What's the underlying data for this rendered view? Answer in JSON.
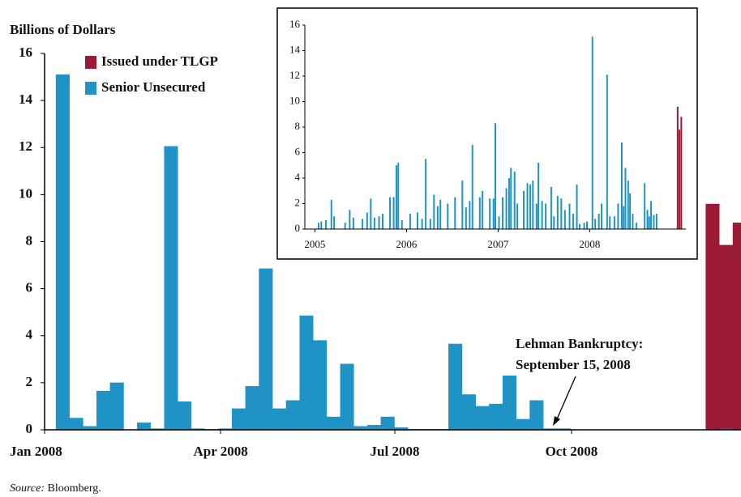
{
  "chart_data": [
    {
      "type": "bar",
      "ylabel": "Billions of Dollars",
      "x": [
        0,
        1,
        2,
        3,
        4,
        5,
        6,
        7,
        8,
        9,
        10,
        11,
        12,
        13,
        14,
        15,
        16,
        17,
        18,
        19,
        20,
        21,
        22,
        23,
        24,
        25,
        26,
        27,
        28,
        29,
        30,
        31,
        32,
        33,
        34,
        35,
        36,
        37,
        38,
        39,
        40,
        41,
        42,
        43,
        44,
        45,
        46,
        47,
        48,
        49,
        50
      ],
      "series": [
        {
          "name": "Senior Unsecured",
          "color": "#1f93c6",
          "values": [
            15.1,
            0.5,
            0.15,
            1.65,
            2.0,
            0,
            0.3,
            0.05,
            12.05,
            1.2,
            0.05,
            0.02,
            0.05,
            0.9,
            1.85,
            6.85,
            0.9,
            1.25,
            4.85,
            3.8,
            0.55,
            2.8,
            0.15,
            0.2,
            0.55,
            0.1,
            0.02,
            0.02,
            0.02,
            3.65,
            1.5,
            1.0,
            1.1,
            2.3,
            0.45,
            1.25,
            0.05,
            0.05,
            0,
            0,
            0,
            0,
            0,
            0,
            0,
            0,
            0,
            0,
            0,
            0.05,
            0
          ]
        },
        {
          "name": "Issued under TLGP",
          "color": "#9b1b34",
          "values": [
            null,
            null,
            null,
            null,
            null,
            null,
            null,
            null,
            null,
            null,
            null,
            null,
            null,
            null,
            null,
            null,
            null,
            null,
            null,
            null,
            null,
            null,
            null,
            null,
            null,
            null,
            null,
            null,
            null,
            null,
            null,
            null,
            null,
            null,
            null,
            null,
            null,
            null,
            null,
            null,
            null,
            null,
            null,
            null,
            null,
            null,
            null,
            null,
            9.6,
            7.8,
            8.8
          ]
        }
      ],
      "legend_order": [
        1,
        0
      ],
      "xlim": [
        -0.84,
        50.6
      ],
      "xticks": [
        {
          "value": -0.84,
          "label": "Jan 2008"
        },
        {
          "value": 12.16,
          "label": "Apr 2008"
        },
        {
          "value": 25.03,
          "label": "Jul 2008"
        },
        {
          "value": 38.08,
          "label": "Oct 2008"
        }
      ],
      "ylim": [
        0,
        16
      ],
      "yticks": [
        0,
        2,
        4,
        6,
        8,
        10,
        12,
        14,
        16
      ],
      "annotation": [
        "Lehman Bankruptcy:",
        "September 15, 2008"
      ],
      "source_label": "Source:",
      "source": "Bloomberg."
    },
    {
      "type": "bar",
      "series": [
        {
          "name": "Senior Unsecured",
          "color": "#1f93c6",
          "x": [
            2005.04,
            2005.07,
            2005.12,
            2005.18,
            2005.21,
            2005.33,
            2005.38,
            2005.42,
            2005.52,
            2005.57,
            2005.61,
            2005.65,
            2005.7,
            2005.74,
            2005.82,
            2005.86,
            2005.89,
            2005.91,
            2005.95,
            2006.04,
            2006.12,
            2006.17,
            2006.21,
            2006.26,
            2006.3,
            2006.34,
            2006.37,
            2006.45,
            2006.53,
            2006.61,
            2006.65,
            2006.69,
            2006.72,
            2006.8,
            2006.83,
            2006.91,
            2006.95,
            2006.97,
            2007.01,
            2007.05,
            2007.09,
            2007.12,
            2007.14,
            2007.18,
            2007.21,
            2007.28,
            2007.32,
            2007.35,
            2007.38,
            2007.42,
            2007.44,
            2007.48,
            2007.52,
            2007.58,
            2007.61,
            2007.65,
            2007.69,
            2007.73,
            2007.78,
            2007.82,
            2007.86,
            2007.89,
            2007.94,
            2007.97,
            2008.03,
            2008.06,
            2008.1,
            2008.13,
            2008.19,
            2008.22,
            2008.27,
            2008.31,
            2008.35,
            2008.37,
            2008.39,
            2008.42,
            2008.44,
            2008.47,
            2008.51,
            2008.6,
            2008.63,
            2008.65,
            2008.67,
            2008.7,
            2008.73
          ],
          "values": [
            0.5,
            0.6,
            0.7,
            2.3,
            1.0,
            0.5,
            1.5,
            0.9,
            0.8,
            1.3,
            2.4,
            0.9,
            1.0,
            1.2,
            2.5,
            2.5,
            5.0,
            5.2,
            0.7,
            1.2,
            1.3,
            0.8,
            5.5,
            0.8,
            2.7,
            1.8,
            2.3,
            2.0,
            2.5,
            3.8,
            1.7,
            2.2,
            6.6,
            2.5,
            3.0,
            2.4,
            2.4,
            8.3,
            1.0,
            2.5,
            3.2,
            4.0,
            4.8,
            4.5,
            2.0,
            3.0,
            3.6,
            3.5,
            3.8,
            2.0,
            5.2,
            2.2,
            2.0,
            3.3,
            1.0,
            2.6,
            2.4,
            1.5,
            2.0,
            1.2,
            3.5,
            0.4,
            0.5,
            0.6,
            15.1,
            0.8,
            1.2,
            2.0,
            12.1,
            1.0,
            1.0,
            2.0,
            6.8,
            1.8,
            4.8,
            3.8,
            2.8,
            1.2,
            0.5,
            3.6,
            1.5,
            1.0,
            2.2,
            1.1,
            1.2
          ]
        },
        {
          "name": "Issued under TLGP",
          "color": "#9b1b34",
          "x": [
            2008.96,
            2008.98,
            2009.0
          ],
          "values": [
            9.6,
            7.8,
            8.8
          ]
        }
      ],
      "xlim": [
        2004.89,
        2009.05
      ],
      "xticks": [
        2005,
        2006,
        2007,
        2008
      ],
      "ylim": [
        0,
        16
      ],
      "yticks": [
        0,
        2,
        4,
        6,
        8,
        10,
        12,
        14,
        16
      ]
    }
  ]
}
